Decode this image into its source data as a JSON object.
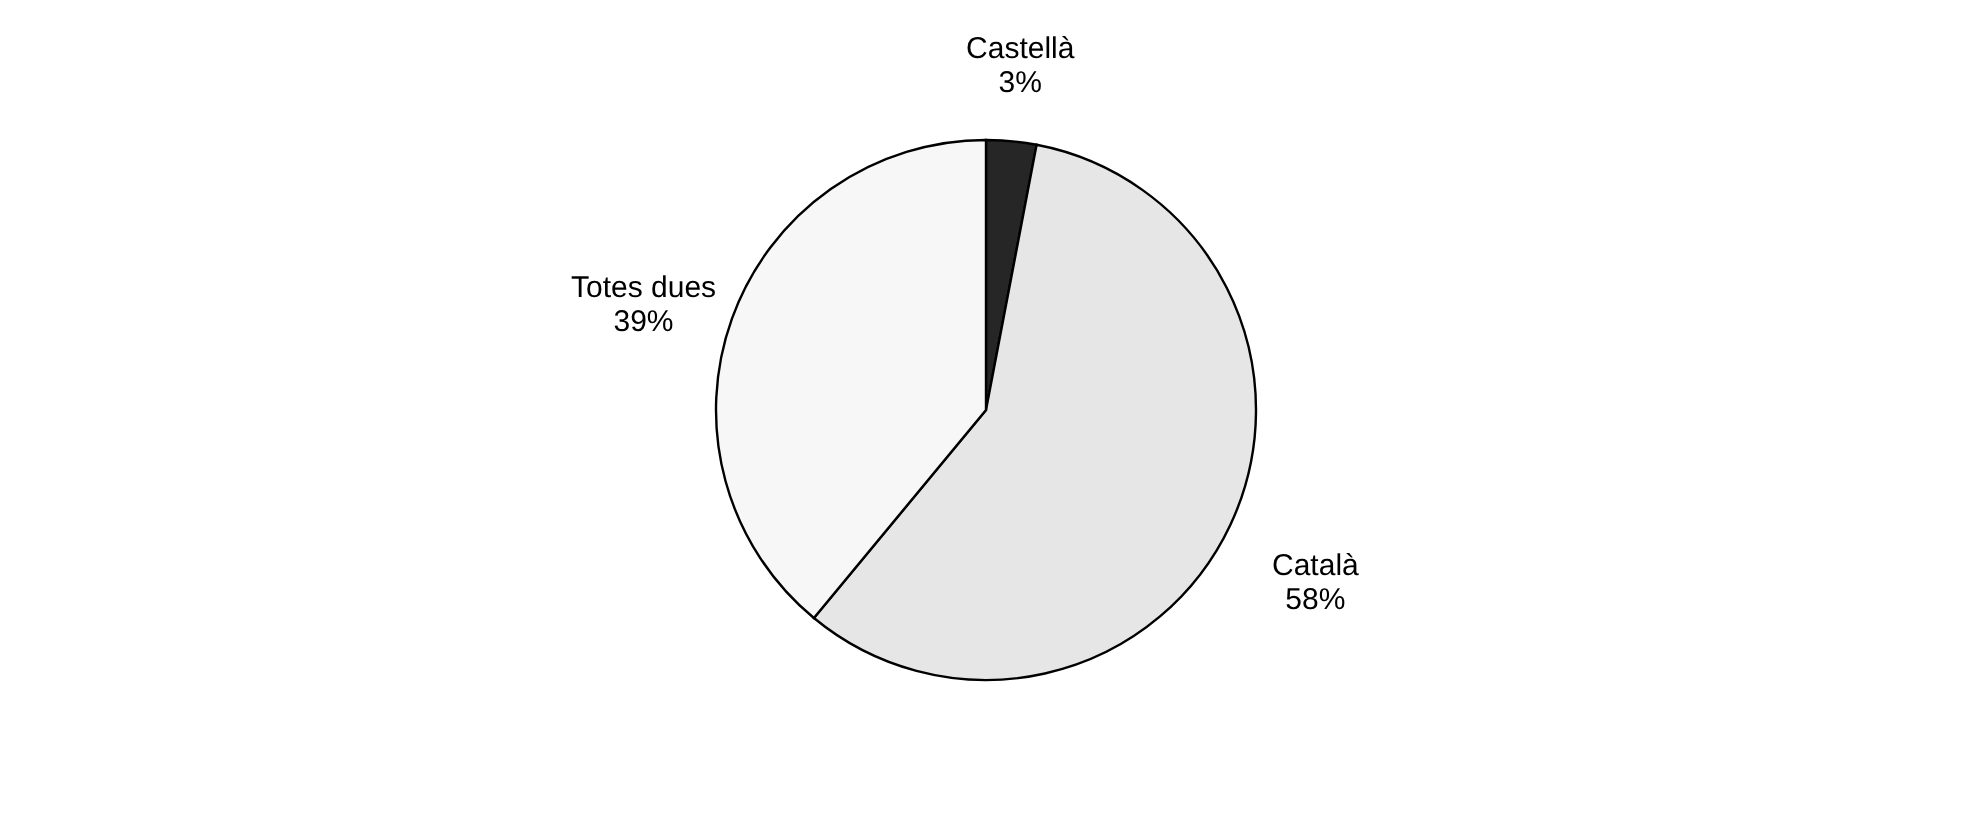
{
  "chart_data": {
    "type": "pie",
    "categories": [
      "Castellà",
      "Català",
      "Totes dues"
    ],
    "values": [
      3,
      58,
      39
    ],
    "colors": [
      "#262626",
      "#e6e6e6",
      "#f7f7f7"
    ],
    "value_labels": [
      "3%",
      "58%",
      "39%"
    ]
  }
}
